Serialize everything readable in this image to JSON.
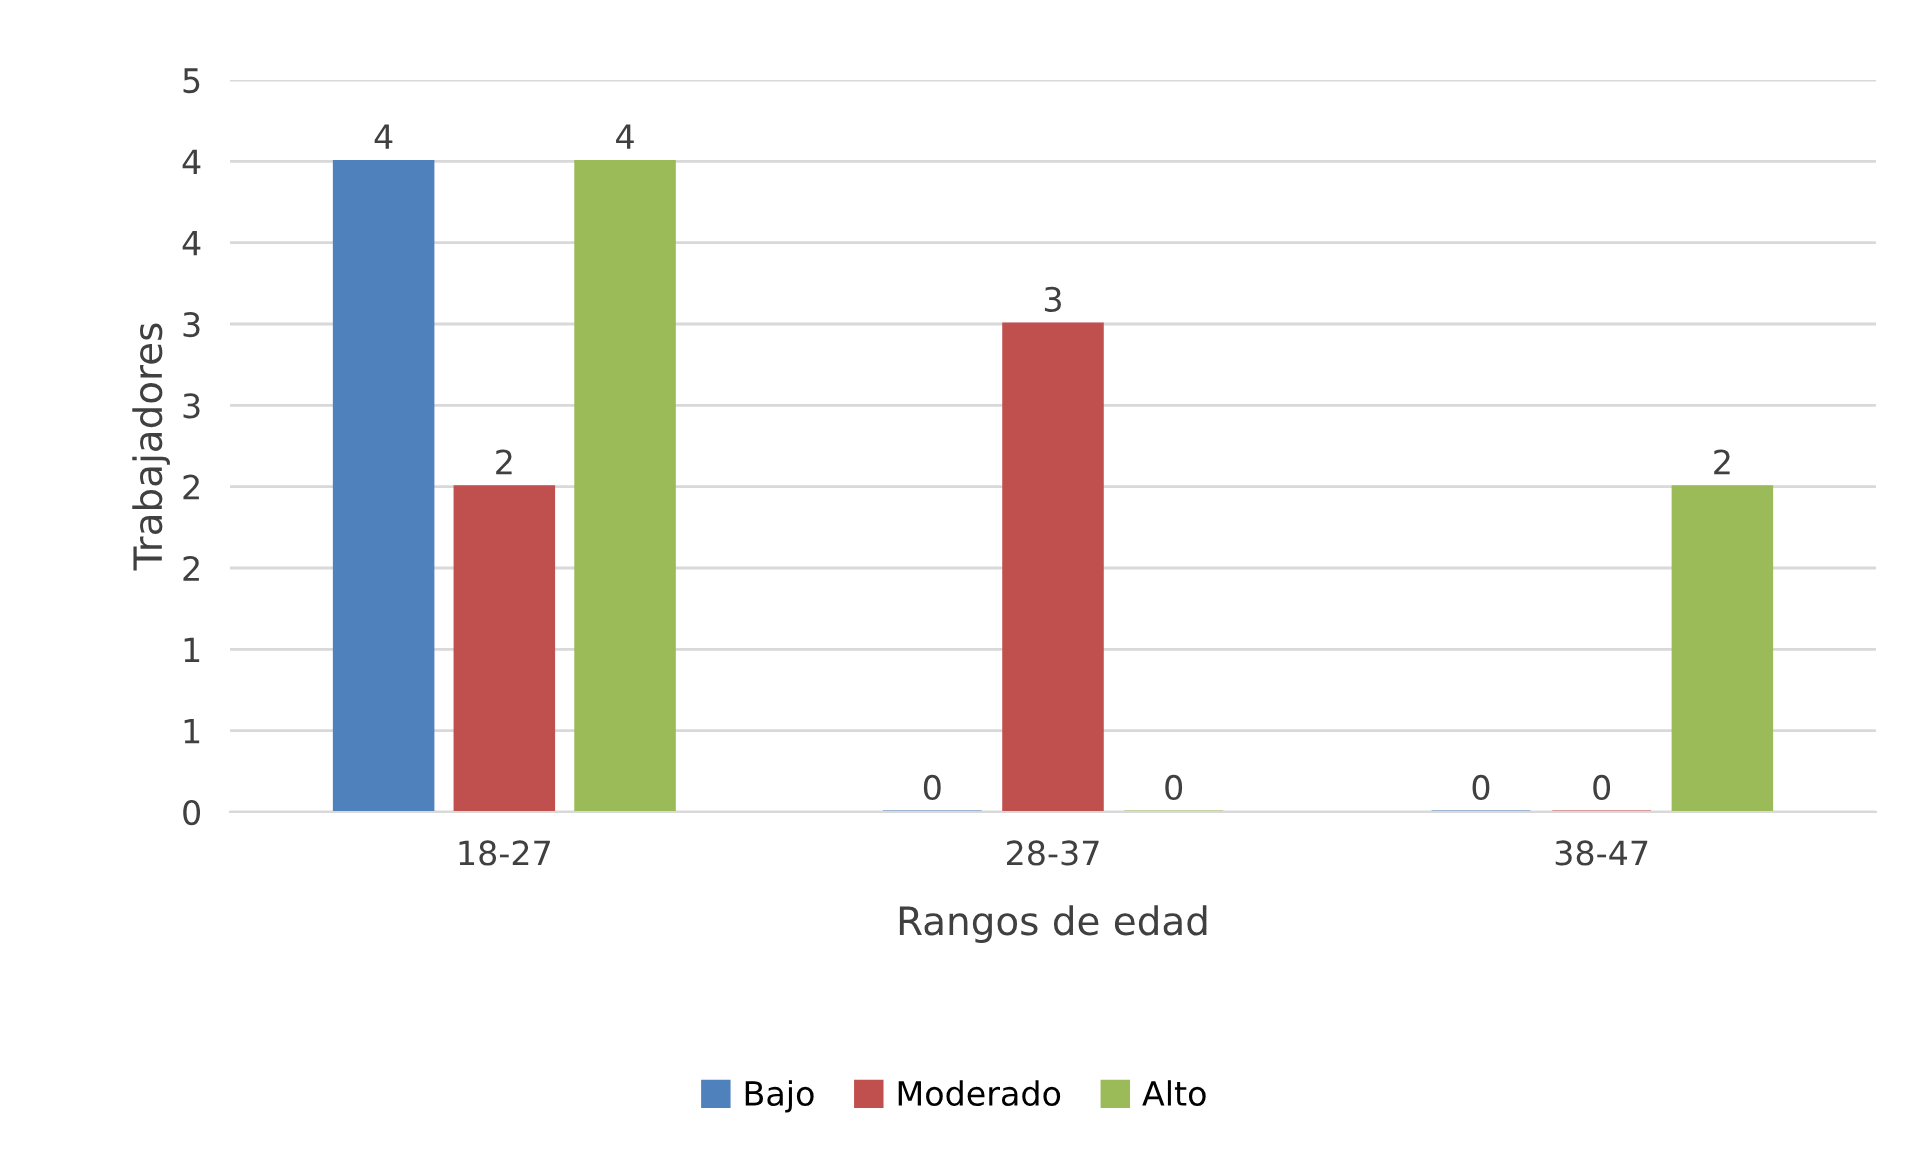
{
  "chart_data": {
    "type": "bar",
    "xlabel": "Rangos de edad",
    "ylabel": "Trabajadores",
    "categories": [
      "18-27",
      "28-37",
      "38-47"
    ],
    "series": [
      {
        "name": "Bajo",
        "color": "#4f81bd",
        "values": [
          4,
          0,
          0
        ]
      },
      {
        "name": "Moderado",
        "color": "#c0504d",
        "values": [
          2,
          3,
          0
        ]
      },
      {
        "name": "Alto",
        "color": "#9bbb59",
        "values": [
          4,
          0,
          2
        ]
      }
    ],
    "ylim": [
      0,
      4.5
    ],
    "yticks": [
      0,
      {
        "value": 0.5,
        "label": "1"
      },
      1,
      {
        "value": 1.5,
        "label": "2"
      },
      2,
      {
        "value": 2.5,
        "label": "3"
      },
      3,
      {
        "value": 3.5,
        "label": "4"
      },
      4,
      {
        "value": 4.5,
        "label": "5"
      }
    ],
    "grid": "y",
    "legend": "bottom",
    "data_labels": true
  }
}
